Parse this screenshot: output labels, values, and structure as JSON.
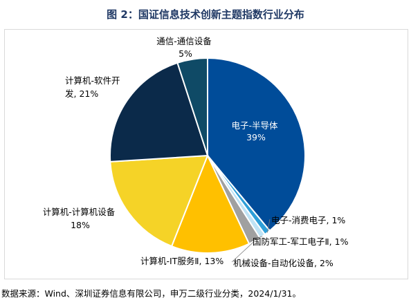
{
  "chart_data": {
    "type": "pie",
    "title": "图 2：国证信息技术创新主题指数行业分布",
    "slices": [
      {
        "label": "电子-半导体",
        "value": 39,
        "value_text": "39%",
        "color": "#004c99"
      },
      {
        "label": "电子-消费电子",
        "value": 1,
        "value_text": "1%",
        "color": "#2e9fd8"
      },
      {
        "label": "国防军工-军工电子Ⅱ",
        "value": 1,
        "value_text": "1%",
        "color": "#bfe3f5"
      },
      {
        "label": "机械设备-自动化设备",
        "value": 2,
        "value_text": "2%",
        "color": "#a0a0a0"
      },
      {
        "label": "计算机-IT服务Ⅱ",
        "value": 13,
        "value_text": "13%",
        "color": "#ffc000"
      },
      {
        "label": "计算机-计算机设备",
        "value": 18,
        "value_text": "18%",
        "color": "#f5d327"
      },
      {
        "label": "计算机-软件开发",
        "value": 21,
        "value_text": "21%",
        "color": "#0b2a4a"
      },
      {
        "label": "通信-通信设备",
        "value": 5,
        "value_text": "5%",
        "color": "#0f4a66"
      }
    ]
  },
  "source": "数据来源：Wind、深圳证券信息有限公司，申万二级行业分类，2024/1/31。"
}
